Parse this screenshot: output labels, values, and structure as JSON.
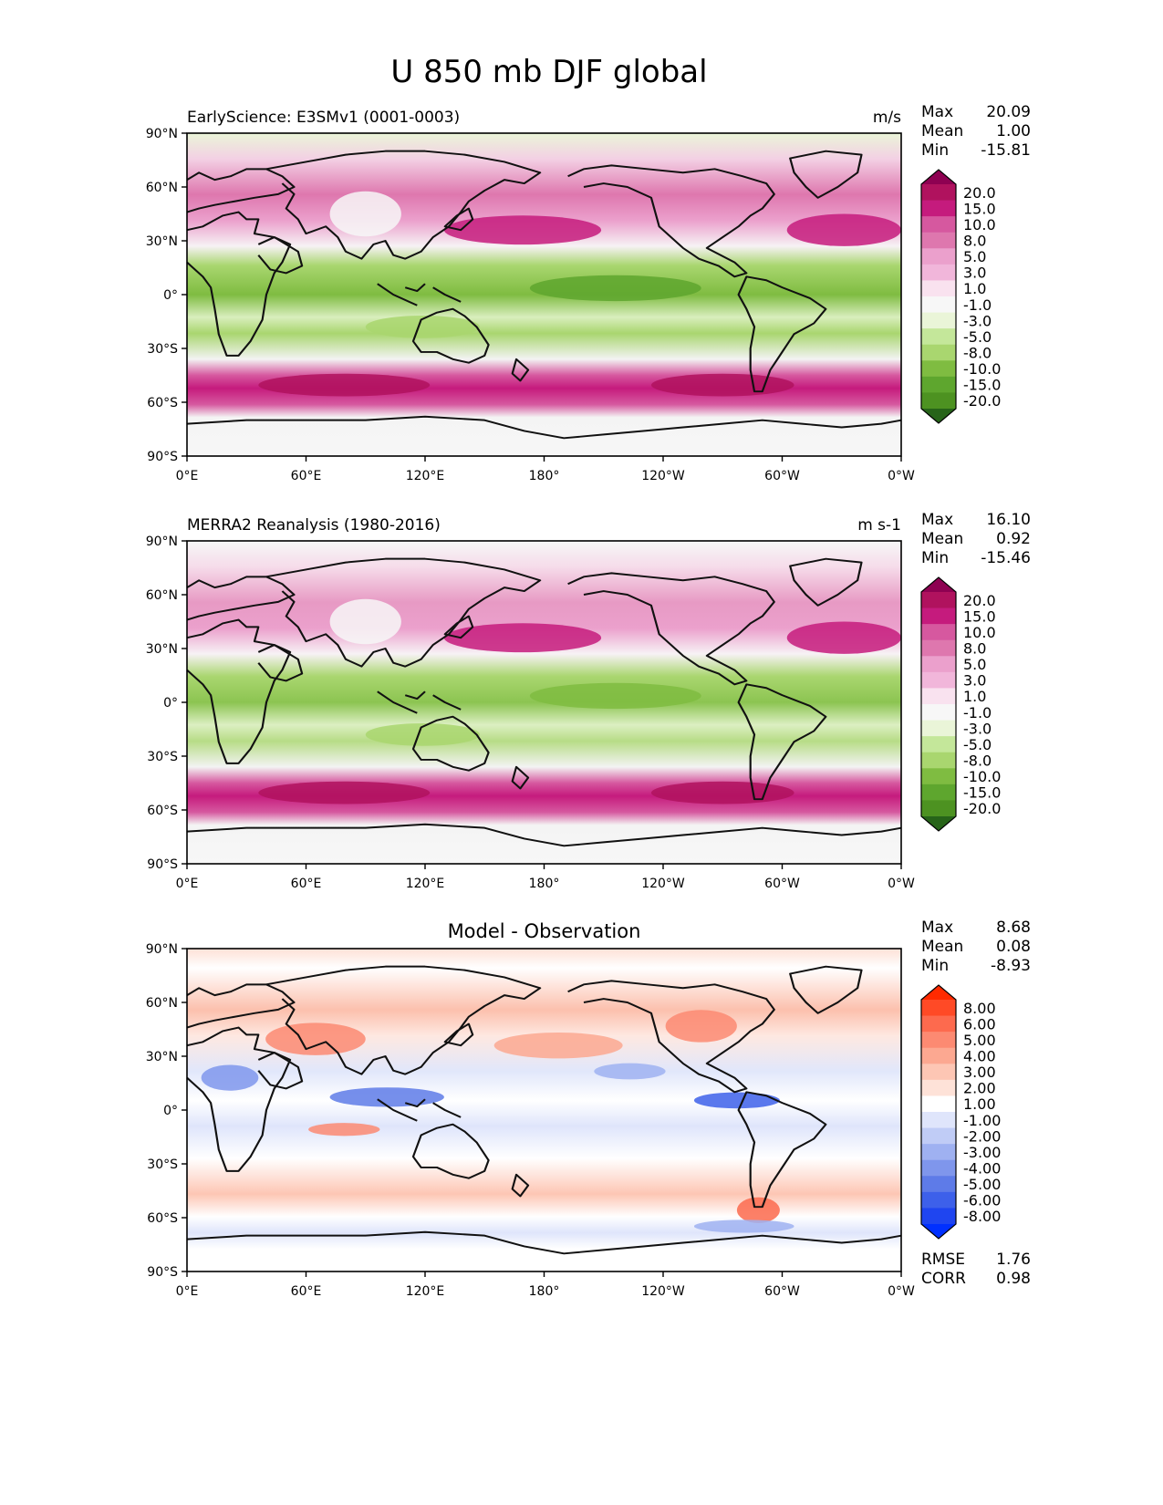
{
  "figure_title": "U 850 mb DJF global",
  "chart_data": [
    {
      "type": "heatmap",
      "id": "test",
      "title_left": "EarlyScience: E3SMv1 (0001-0003)",
      "units": "m/s",
      "stats": [
        {
          "label": "Max",
          "value": "20.09"
        },
        {
          "label": "Mean",
          "value": "1.00"
        },
        {
          "label": "Min",
          "value": "-15.81"
        }
      ],
      "colorbar": {
        "levels": [
          "20.0",
          "15.0",
          "10.0",
          "8.0",
          "5.0",
          "3.0",
          "1.0",
          "-1.0",
          "-3.0",
          "-5.0",
          "-8.0",
          "-10.0",
          "-15.0",
          "-20.0"
        ],
        "colors": [
          "#8e0152",
          "#b0125e",
          "#c51b7d",
          "#d6589f",
          "#de77ae",
          "#eba0cc",
          "#f1b6da",
          "#f9e2ef",
          "#f7f7f7",
          "#eaf5d8",
          "#c4e79a",
          "#a9d66f",
          "#7fbc41",
          "#5ea62e",
          "#4d9221",
          "#276419"
        ]
      },
      "x_ticks": [
        "0°E",
        "60°E",
        "120°E",
        "180°",
        "120°W",
        "60°W",
        "0°W"
      ],
      "y_ticks": [
        "90°N",
        "60°N",
        "30°N",
        "0°",
        "30°S",
        "60°S",
        "90°S"
      ]
    },
    {
      "type": "heatmap",
      "id": "ref",
      "title_left": "MERRA2 Reanalysis (1980-2016)",
      "units": "m s-1",
      "stats": [
        {
          "label": "Max",
          "value": "16.10"
        },
        {
          "label": "Mean",
          "value": "0.92"
        },
        {
          "label": "Min",
          "value": "-15.46"
        }
      ],
      "colorbar": {
        "levels": [
          "20.0",
          "15.0",
          "10.0",
          "8.0",
          "5.0",
          "3.0",
          "1.0",
          "-1.0",
          "-3.0",
          "-5.0",
          "-8.0",
          "-10.0",
          "-15.0",
          "-20.0"
        ],
        "colors": [
          "#8e0152",
          "#b0125e",
          "#c51b7d",
          "#d6589f",
          "#de77ae",
          "#eba0cc",
          "#f1b6da",
          "#f9e2ef",
          "#f7f7f7",
          "#eaf5d8",
          "#c4e79a",
          "#a9d66f",
          "#7fbc41",
          "#5ea62e",
          "#4d9221",
          "#276419"
        ]
      },
      "x_ticks": [
        "0°E",
        "60°E",
        "120°E",
        "180°",
        "120°W",
        "60°W",
        "0°W"
      ],
      "y_ticks": [
        "90°N",
        "60°N",
        "30°N",
        "0°",
        "30°S",
        "60°S",
        "90°S"
      ]
    },
    {
      "type": "heatmap",
      "id": "diff",
      "title_center": "Model - Observation",
      "stats": [
        {
          "label": "Max",
          "value": "8.68"
        },
        {
          "label": "Mean",
          "value": "0.08"
        },
        {
          "label": "Min",
          "value": "-8.93"
        }
      ],
      "colorbar": {
        "levels": [
          "8.00",
          "6.00",
          "5.00",
          "4.00",
          "3.00",
          "2.00",
          "1.00",
          "-1.00",
          "-2.00",
          "-3.00",
          "-4.00",
          "-5.00",
          "-6.00",
          "-8.00"
        ],
        "colors": [
          "#ff2a00",
          "#ff4a26",
          "#fd6a4e",
          "#fc8a72",
          "#fca891",
          "#fdc6b4",
          "#fee2d8",
          "#ffffff",
          "#dfe5fb",
          "#c0ccf6",
          "#9fb1f1",
          "#7f96ec",
          "#5e7be8",
          "#3d60ea",
          "#1f45f0",
          "#0030ff"
        ]
      },
      "bottom_stats": [
        {
          "label": "RMSE",
          "value": "1.76"
        },
        {
          "label": "CORR",
          "value": "0.98"
        }
      ],
      "x_ticks": [
        "0°E",
        "60°E",
        "120°E",
        "180°",
        "120°W",
        "60°W",
        "0°W"
      ],
      "y_ticks": [
        "90°N",
        "60°N",
        "30°N",
        "0°",
        "30°S",
        "60°S",
        "90°S"
      ]
    }
  ]
}
